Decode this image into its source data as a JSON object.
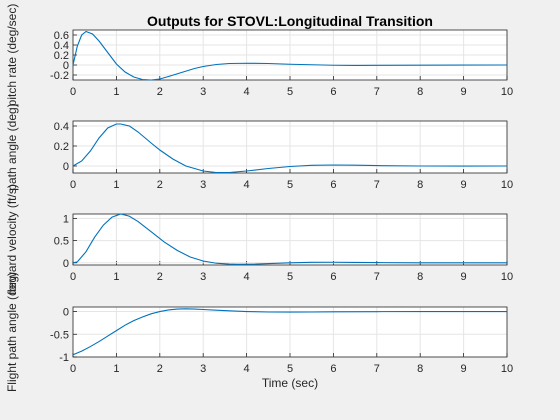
{
  "figure": {
    "title": "Outputs for STOVL:Longitudinal Transition",
    "line_color": "#0072bd",
    "grid_color": "#e5e5e5",
    "axes_color": "#262626",
    "background": "#f0f0f0",
    "axes_background": "#ffffff"
  },
  "chart_data": [
    {
      "type": "line",
      "ylabel": "pitch rate (deg/sec)",
      "xlabel": "",
      "xlim": [
        0,
        10
      ],
      "ylim": [
        -0.3,
        0.7
      ],
      "xticks": [
        "0",
        "1",
        "2",
        "3",
        "4",
        "5",
        "6",
        "7",
        "8",
        "9",
        "10"
      ],
      "yticks": [
        -0.2,
        0,
        0.2,
        0.4,
        0.6
      ],
      "ytick_labels": [
        "-0.2",
        "0",
        "0.2",
        "0.4",
        "0.6"
      ],
      "grid": true,
      "series": [
        {
          "x": [
            0,
            0.1,
            0.2,
            0.3,
            0.45,
            0.6,
            0.8,
            1.0,
            1.2,
            1.4,
            1.6,
            1.8,
            2.0,
            2.2,
            2.5,
            2.8,
            3.0,
            3.3,
            3.6,
            4.0,
            4.5,
            5.0,
            5.5,
            6.0,
            6.5,
            7.0,
            8.0,
            9.0,
            10.0
          ],
          "y": [
            0.0,
            0.38,
            0.6,
            0.67,
            0.62,
            0.48,
            0.25,
            0.02,
            -0.14,
            -0.24,
            -0.29,
            -0.3,
            -0.28,
            -0.23,
            -0.15,
            -0.07,
            -0.03,
            0.01,
            0.03,
            0.035,
            0.03,
            0.015,
            0.005,
            -0.005,
            -0.008,
            -0.006,
            -0.003,
            -0.001,
            0.0
          ]
        }
      ]
    },
    {
      "type": "line",
      "ylabel": "path angle (deg)",
      "xlabel": "",
      "xlim": [
        0,
        10
      ],
      "ylim": [
        -0.07,
        0.45
      ],
      "xticks": [
        "0",
        "1",
        "2",
        "3",
        "4",
        "5",
        "6",
        "7",
        "8",
        "9",
        "10"
      ],
      "yticks": [
        0,
        0.2,
        0.4
      ],
      "ytick_labels": [
        "0",
        "0.2",
        "0.4"
      ],
      "grid": true,
      "series": [
        {
          "x": [
            0,
            0.2,
            0.4,
            0.6,
            0.8,
            1.0,
            1.1,
            1.3,
            1.5,
            1.8,
            2.0,
            2.3,
            2.6,
            3.0,
            3.3,
            3.6,
            4.0,
            4.5,
            5.0,
            5.5,
            6.0,
            6.5,
            7.0,
            8.0,
            9.0,
            10.0
          ],
          "y": [
            0.0,
            0.05,
            0.15,
            0.28,
            0.38,
            0.42,
            0.42,
            0.4,
            0.34,
            0.23,
            0.16,
            0.07,
            0.0,
            -0.05,
            -0.065,
            -0.065,
            -0.05,
            -0.025,
            -0.005,
            0.007,
            0.01,
            0.008,
            0.004,
            0.0,
            -0.001,
            0.0
          ]
        }
      ]
    },
    {
      "type": "line",
      "ylabel": "forward velocity (ft/s)",
      "xlabel": "",
      "xlim": [
        0,
        10
      ],
      "ylim": [
        -0.05,
        1.1
      ],
      "xticks": [
        "0",
        "1",
        "2",
        "3",
        "4",
        "5",
        "6",
        "7",
        "8",
        "9",
        "10"
      ],
      "yticks": [
        0,
        0.5,
        1
      ],
      "ytick_labels": [
        "0",
        "0.5",
        "1"
      ],
      "grid": true,
      "series": [
        {
          "x": [
            0,
            0.1,
            0.3,
            0.5,
            0.7,
            0.9,
            1.1,
            1.3,
            1.5,
            1.8,
            2.1,
            2.4,
            2.7,
            3.0,
            3.3,
            3.6,
            3.8,
            4.2,
            4.6,
            5.0,
            5.5,
            6.0,
            6.5,
            7.0,
            8.0,
            9.0,
            10.0
          ],
          "y": [
            0.0,
            0.02,
            0.25,
            0.58,
            0.85,
            1.03,
            1.1,
            1.05,
            0.93,
            0.7,
            0.47,
            0.28,
            0.13,
            0.04,
            -0.01,
            -0.03,
            -0.035,
            -0.03,
            -0.015,
            0.0,
            0.01,
            0.012,
            0.008,
            0.004,
            0.0,
            -0.001,
            0.0
          ]
        }
      ]
    },
    {
      "type": "line",
      "ylabel": "Flight path angle (deg)",
      "xlabel": "Time (sec)",
      "xlim": [
        0,
        10
      ],
      "ylim": [
        -1.0,
        0.1
      ],
      "xticks": [
        "0",
        "1",
        "2",
        "3",
        "4",
        "5",
        "6",
        "7",
        "8",
        "9",
        "10"
      ],
      "yticks": [
        -1,
        -0.5,
        0
      ],
      "ytick_labels": [
        "-1",
        "-0.5",
        "0"
      ],
      "grid": true,
      "series": [
        {
          "x": [
            0,
            0.2,
            0.4,
            0.6,
            0.8,
            1.0,
            1.2,
            1.4,
            1.6,
            1.8,
            2.0,
            2.2,
            2.4,
            2.6,
            2.8,
            3.0,
            3.3,
            3.6,
            4.0,
            4.5,
            5.0,
            5.5,
            6.0,
            7.0,
            8.0,
            9.0,
            10.0
          ],
          "y": [
            -0.95,
            -0.87,
            -0.77,
            -0.66,
            -0.54,
            -0.42,
            -0.3,
            -0.2,
            -0.12,
            -0.05,
            0.0,
            0.035,
            0.055,
            0.06,
            0.055,
            0.045,
            0.03,
            0.015,
            0.0,
            -0.01,
            -0.012,
            -0.01,
            -0.006,
            -0.002,
            0.0,
            0.0,
            0.0
          ]
        }
      ]
    }
  ]
}
